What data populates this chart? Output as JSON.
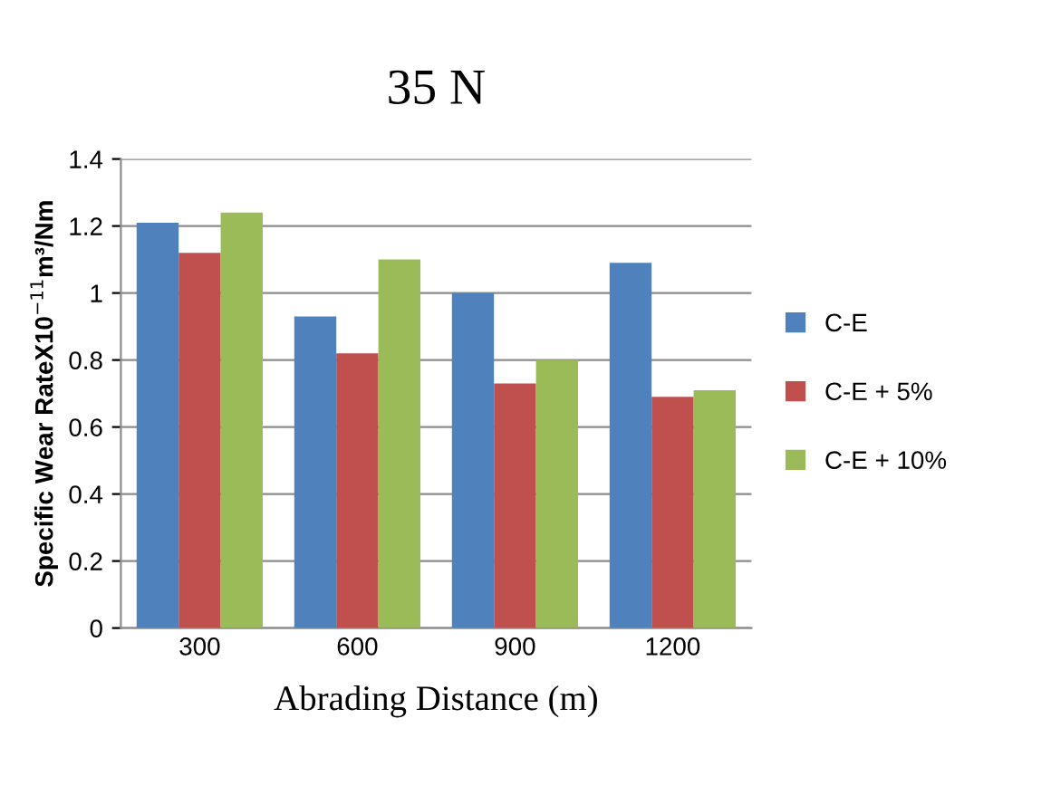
{
  "chart_data": {
    "type": "bar",
    "title": "35 N",
    "xlabel": "Abrading Distance (m)",
    "ylabel": "Specific Wear RateX10$^{−11}$m³/Nm",
    "categories": [
      "300",
      "600",
      "900",
      "1200"
    ],
    "series": [
      {
        "name": "C-E",
        "color": "#4f81bd",
        "values": [
          1.21,
          0.93,
          1.0,
          1.09
        ]
      },
      {
        "name": "C-E + 5%",
        "color": "#c0504d",
        "values": [
          1.12,
          0.82,
          0.73,
          0.69
        ]
      },
      {
        "name": "C-E + 10%",
        "color": "#9bbb59",
        "values": [
          1.24,
          1.1,
          0.8,
          0.71
        ]
      }
    ],
    "ylim": [
      0,
      1.4
    ],
    "yticks": [
      0,
      0.2,
      0.4,
      0.6,
      0.8,
      1,
      1.2,
      1.4
    ],
    "grid": "y",
    "legend": "right"
  }
}
